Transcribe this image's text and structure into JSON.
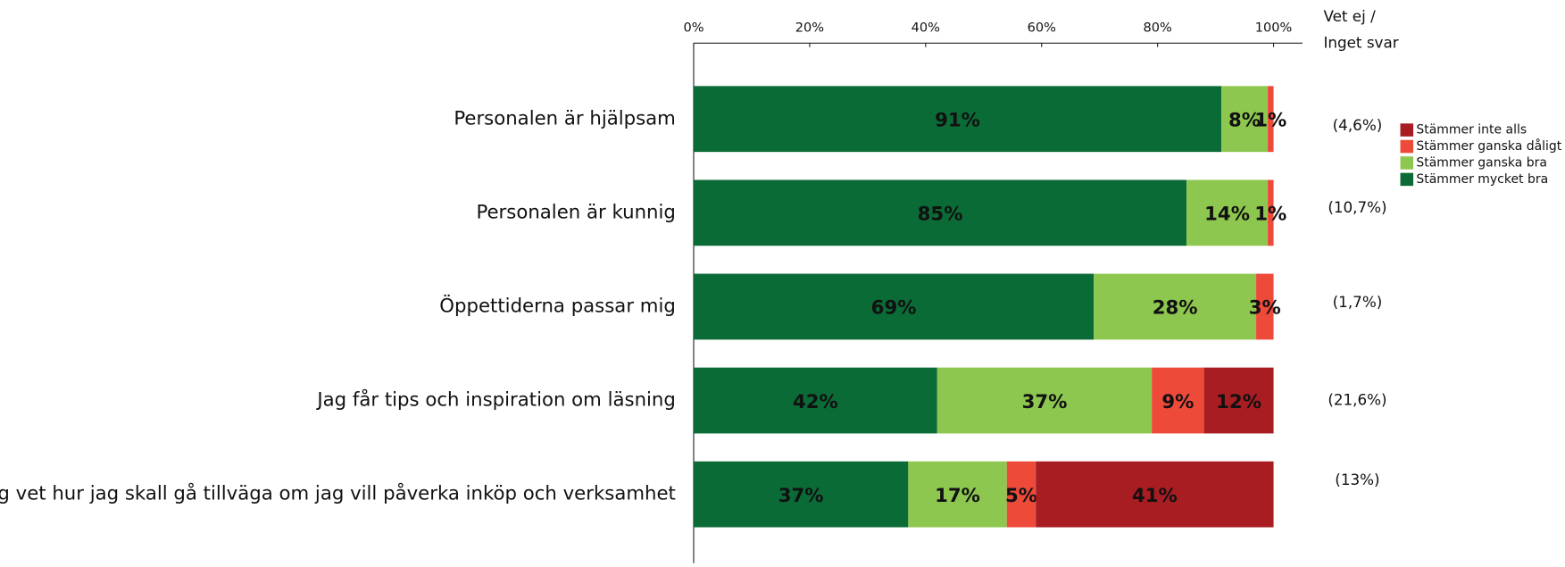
{
  "chart_data": {
    "type": "stacked_barh",
    "categories": [
      "Personalen är hjälpsam",
      "Personalen är kunnig",
      "Öppettiderna passar mig",
      "Jag får tips och inspiration om läsning",
      "Jag vet hur jag skall gå tillväga om jag vill påverka inköp och verksamhet"
    ],
    "series": [
      {
        "name": "Stämmer inte alls",
        "color": "#a71d22",
        "values": [
          0,
          0,
          0,
          12,
          41
        ],
        "value_labels": [
          null,
          null,
          null,
          "12%",
          "41%"
        ]
      },
      {
        "name": "Stämmer ganska dåligt",
        "color": "#ee4a3a",
        "values": [
          1,
          1,
          3,
          9,
          5
        ],
        "value_labels": [
          "1%",
          "1%",
          "3%",
          "9%",
          "5%"
        ]
      },
      {
        "name": "Stämmer ganska bra",
        "color": "#8dc74f",
        "values": [
          8,
          14,
          28,
          37,
          17
        ],
        "value_labels": [
          "8%",
          "14%",
          "28%",
          "37%",
          "17%"
        ]
      },
      {
        "name": "Stämmer mycket bra",
        "color": "#0b6b37",
        "values": [
          91,
          85,
          69,
          42,
          37
        ],
        "value_labels": [
          "91%",
          "85%",
          "69%",
          "42%",
          "37%"
        ]
      }
    ],
    "xlim": [
      0,
      100
    ],
    "xticks": [
      {
        "value": 0,
        "label": "0%"
      },
      {
        "value": 20,
        "label": "20%"
      },
      {
        "value": 40,
        "label": "40%"
      },
      {
        "value": 60,
        "label": "60%"
      },
      {
        "value": 80,
        "label": "80%"
      },
      {
        "value": 100,
        "label": "100%"
      }
    ],
    "no_answer_header": [
      "Vet ej /",
      "Inget svar"
    ],
    "no_answer": [
      "(4,6%)",
      "(10,7%)",
      "(1,7%)",
      "(21,6%)",
      "(13%)"
    ],
    "legend": "right"
  }
}
